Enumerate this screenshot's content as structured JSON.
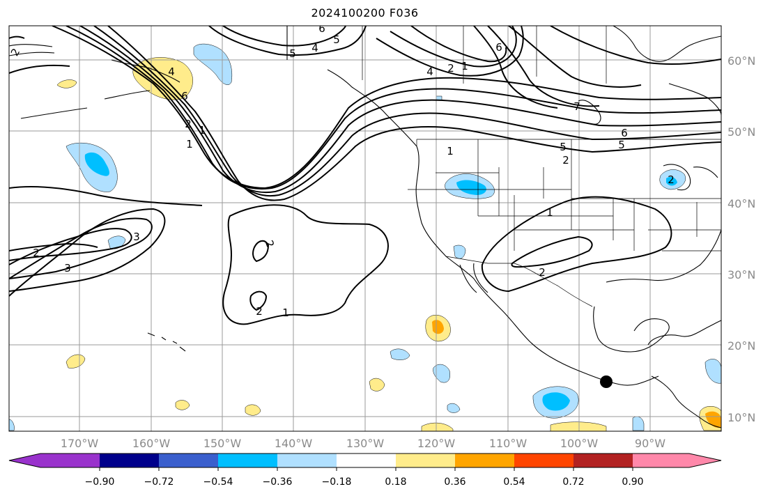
{
  "title": "2024100200 F036",
  "latitude_labels": [
    "60°N",
    "50°N",
    "40°N",
    "30°N",
    "20°N",
    "10°N"
  ],
  "longitude_labels": [
    "170°W",
    "160°W",
    "150°W",
    "140°W",
    "130°W",
    "120°W",
    "110°W",
    "100°W",
    "90°W"
  ],
  "colorbar": {
    "tick_labels": [
      "−0.90",
      "−0.72",
      "−0.54",
      "−0.36",
      "−0.18",
      "0.18",
      "0.36",
      "0.54",
      "0.72",
      "0.90"
    ],
    "colors": [
      "#9932cc",
      "#00008b",
      "#3a5fcd",
      "#00bfff",
      "#b0e0ff",
      "#ffffff",
      "#ffec8b",
      "#ffa500",
      "#ff4500",
      "#b22222",
      "#ff88aa"
    ]
  },
  "contour_labels": [
    "2",
    "5",
    "4",
    "5",
    "6",
    "4",
    "2",
    "1",
    "6",
    "7",
    "4",
    "6",
    "1",
    "1",
    "5",
    "2",
    "6",
    "5",
    "2",
    "2",
    "3",
    "3",
    "2",
    "2",
    "1",
    "1",
    "2",
    "1",
    "2"
  ],
  "colors": {
    "contour": "#000000",
    "grid": "#9a9a9a",
    "coast": "#000000",
    "marker": "#000000"
  }
}
